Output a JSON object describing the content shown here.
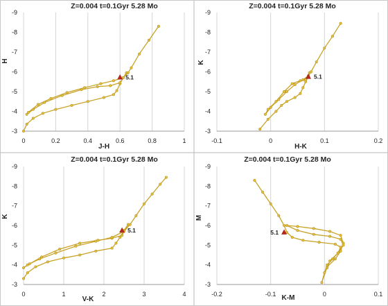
{
  "chart_data": [
    {
      "type": "line",
      "title": "Z=0.004  t=0.1Gyr  5.28 Mo",
      "xlabel": "J-H",
      "ylabel": "H",
      "xlim": [
        0,
        1
      ],
      "ylim": [
        -3,
        -9
      ],
      "x_ticks": [
        "0",
        "0.2",
        "0.4",
        "0.6",
        "0.8",
        "1"
      ],
      "y_ticks": [
        "-3",
        "-4",
        "-5",
        "-6",
        "-7",
        "-8",
        "-9"
      ],
      "grid": "vertical-only",
      "mark_label": "5.1",
      "mark_point": [
        0.6,
        -5.72
      ],
      "series_points": [
        [
          0.0,
          -3.0
        ],
        [
          0.02,
          -3.35
        ],
        [
          0.06,
          -3.65
        ],
        [
          0.12,
          -3.9
        ],
        [
          0.2,
          -4.1
        ],
        [
          0.3,
          -4.3
        ],
        [
          0.4,
          -4.5
        ],
        [
          0.5,
          -4.7
        ],
        [
          0.56,
          -4.85
        ],
        [
          0.58,
          -5.05
        ],
        [
          0.6,
          -5.4
        ],
        [
          0.62,
          -5.7
        ],
        [
          0.64,
          -5.95
        ],
        [
          0.6,
          -5.45
        ],
        [
          0.54,
          -5.3
        ],
        [
          0.46,
          -5.25
        ],
        [
          0.36,
          -5.1
        ],
        [
          0.24,
          -4.8
        ],
        [
          0.13,
          -4.45
        ],
        [
          0.06,
          -4.1
        ],
        [
          0.02,
          -3.85
        ],
        [
          0.03,
          -3.95
        ],
        [
          0.09,
          -4.35
        ],
        [
          0.17,
          -4.65
        ],
        [
          0.27,
          -4.95
        ],
        [
          0.38,
          -5.2
        ],
        [
          0.48,
          -5.4
        ],
        [
          0.56,
          -5.55
        ],
        [
          0.62,
          -5.7
        ],
        [
          0.65,
          -5.95
        ],
        [
          0.67,
          -6.2
        ],
        [
          0.72,
          -6.9
        ],
        [
          0.78,
          -7.6
        ],
        [
          0.84,
          -8.3
        ]
      ]
    },
    {
      "type": "line",
      "title": "Z=0.004  t=0.1Gyr  5.28 Mo",
      "xlabel": "H-K",
      "ylabel": "K",
      "xlim": [
        -0.1,
        0.2
      ],
      "ylim": [
        -3,
        -9
      ],
      "x_ticks": [
        "-0.1",
        "0",
        "0.1",
        "0.2"
      ],
      "y_ticks": [
        "-3",
        "-4",
        "-5",
        "-6",
        "-7",
        "-8",
        "-9"
      ],
      "grid": "vertical-only",
      "mark_label": "5.1",
      "mark_point": [
        0.07,
        -5.75
      ],
      "series_points": [
        [
          -0.02,
          -3.1
        ],
        [
          -0.005,
          -3.6
        ],
        [
          0.01,
          -4.0
        ],
        [
          0.02,
          -4.3
        ],
        [
          0.03,
          -4.5
        ],
        [
          0.045,
          -4.7
        ],
        [
          0.055,
          -4.9
        ],
        [
          0.06,
          -5.2
        ],
        [
          0.065,
          -5.5
        ],
        [
          0.07,
          -5.75
        ],
        [
          0.072,
          -5.95
        ],
        [
          0.065,
          -5.6
        ],
        [
          0.055,
          -5.55
        ],
        [
          0.04,
          -5.4
        ],
        [
          0.025,
          -5.0
        ],
        [
          0.01,
          -4.5
        ],
        [
          -0.005,
          -4.1
        ],
        [
          -0.01,
          -3.85
        ],
        [
          0.0,
          -4.2
        ],
        [
          0.015,
          -4.6
        ],
        [
          0.03,
          -5.0
        ],
        [
          0.045,
          -5.35
        ],
        [
          0.06,
          -5.6
        ],
        [
          0.07,
          -5.8
        ],
        [
          0.075,
          -6.0
        ],
        [
          0.085,
          -6.5
        ],
        [
          0.1,
          -7.2
        ],
        [
          0.115,
          -7.8
        ],
        [
          0.13,
          -8.45
        ]
      ]
    },
    {
      "type": "line",
      "title": "Z=0.004  t=0.1Gyr  5.28 Mo",
      "xlabel": "V-K",
      "ylabel": "K",
      "xlim": [
        0,
        4
      ],
      "ylim": [
        -3,
        -9
      ],
      "x_ticks": [
        "0",
        "1",
        "2",
        "3",
        "4"
      ],
      "y_ticks": [
        "-3",
        "-4",
        "-5",
        "-6",
        "-7",
        "-8",
        "-9"
      ],
      "grid": "vertical-only",
      "mark_label": "5.1",
      "mark_point": [
        2.45,
        -5.75
      ],
      "series_points": [
        [
          0.0,
          -3.3
        ],
        [
          0.1,
          -3.6
        ],
        [
          0.3,
          -3.9
        ],
        [
          0.6,
          -4.15
        ],
        [
          1.0,
          -4.35
        ],
        [
          1.4,
          -4.5
        ],
        [
          1.8,
          -4.7
        ],
        [
          2.2,
          -4.85
        ],
        [
          2.3,
          -5.1
        ],
        [
          2.4,
          -5.4
        ],
        [
          2.5,
          -5.75
        ],
        [
          2.6,
          -6.05
        ],
        [
          2.45,
          -5.5
        ],
        [
          2.2,
          -5.35
        ],
        [
          1.85,
          -5.25
        ],
        [
          1.4,
          -5.1
        ],
        [
          0.9,
          -4.8
        ],
        [
          0.45,
          -4.4
        ],
        [
          0.15,
          -4.05
        ],
        [
          0.0,
          -3.85
        ],
        [
          0.1,
          -4.0
        ],
        [
          0.4,
          -4.3
        ],
        [
          0.8,
          -4.6
        ],
        [
          1.3,
          -4.95
        ],
        [
          1.8,
          -5.2
        ],
        [
          2.2,
          -5.4
        ],
        [
          2.5,
          -5.7
        ],
        [
          2.65,
          -6.05
        ],
        [
          2.8,
          -6.5
        ],
        [
          3.0,
          -7.1
        ],
        [
          3.2,
          -7.6
        ],
        [
          3.4,
          -8.1
        ],
        [
          3.55,
          -8.45
        ]
      ]
    },
    {
      "type": "line",
      "title": "Z=0.004  t=0.1Gyr  5.28 Mo",
      "xlabel": "K-M",
      "ylabel": "M",
      "xlim": [
        -0.2,
        0.1
      ],
      "ylim": [
        -3,
        -9
      ],
      "x_ticks": [
        "-0.2",
        "-0.1",
        "0",
        "0.1"
      ],
      "y_ticks": [
        "-3",
        "-4",
        "-5",
        "-6",
        "-7",
        "-8",
        "-9"
      ],
      "grid": "vertical-only",
      "mark_label": "5.1",
      "mark_point": [
        -0.075,
        -5.65
      ],
      "series_points": [
        [
          -0.13,
          -8.3
        ],
        [
          -0.115,
          -7.7
        ],
        [
          -0.1,
          -7.1
        ],
        [
          -0.085,
          -6.5
        ],
        [
          -0.075,
          -6.0
        ],
        [
          -0.07,
          -5.65
        ],
        [
          -0.06,
          -5.4
        ],
        [
          -0.04,
          -5.25
        ],
        [
          -0.01,
          -5.15
        ],
        [
          0.02,
          -5.05
        ],
        [
          0.03,
          -4.9
        ],
        [
          0.025,
          -4.6
        ],
        [
          0.015,
          -4.3
        ],
        [
          0.005,
          -4.0
        ],
        [
          0.0,
          -3.6
        ],
        [
          -0.005,
          -3.1
        ],
        [
          0.005,
          -3.9
        ],
        [
          0.02,
          -4.3
        ],
        [
          0.03,
          -4.7
        ],
        [
          0.035,
          -5.1
        ],
        [
          0.03,
          -5.5
        ],
        [
          0.01,
          -5.7
        ],
        [
          -0.02,
          -5.85
        ],
        [
          -0.05,
          -5.95
        ],
        [
          -0.07,
          -6.0
        ],
        [
          -0.05,
          -5.75
        ],
        [
          -0.02,
          -5.55
        ],
        [
          0.01,
          -5.45
        ],
        [
          0.03,
          -5.3
        ],
        [
          0.035,
          -5.0
        ],
        [
          0.025,
          -4.6
        ],
        [
          0.01,
          -4.2
        ],
        [
          0.005,
          -3.85
        ]
      ]
    }
  ]
}
